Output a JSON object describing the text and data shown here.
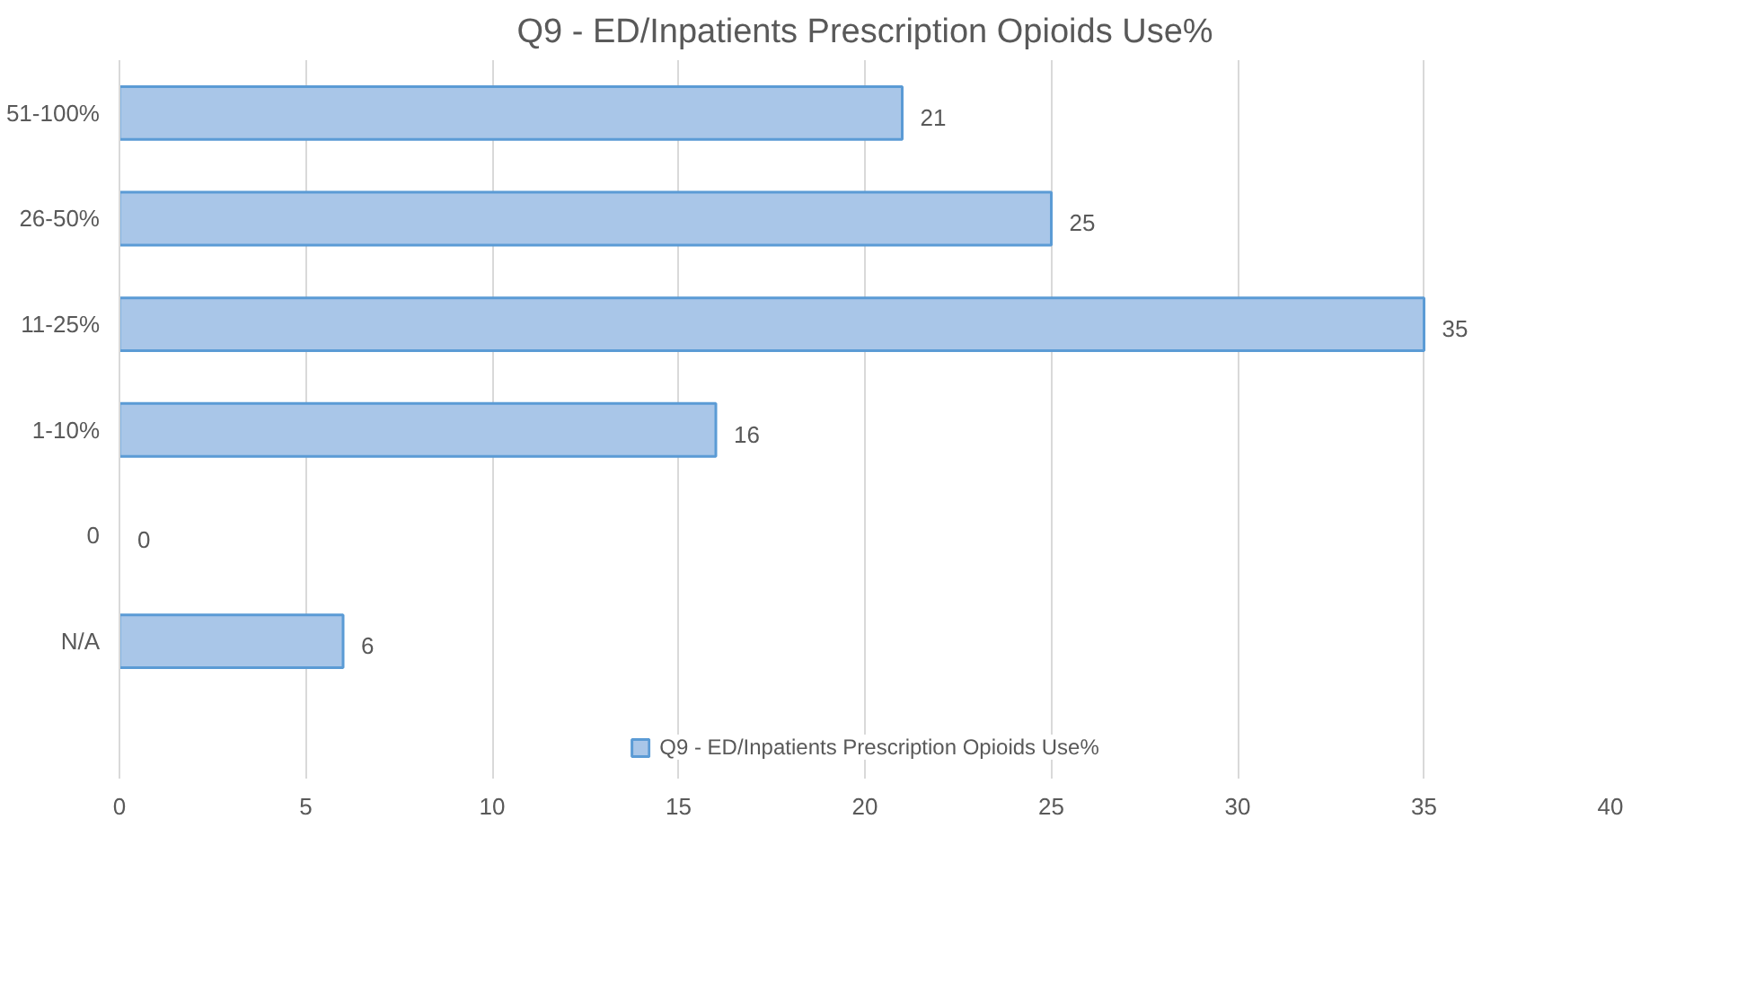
{
  "chart_data": {
    "type": "bar",
    "orientation": "horizontal",
    "title": "Q9 - ED/Inpatients Prescription Opioids Use%",
    "categories": [
      "51-100%",
      "26-50%",
      "11-25%",
      "1-10%",
      "0",
      "N/A"
    ],
    "series": [
      {
        "name": "Q9 - ED/Inpatients Prescription Opioids Use%",
        "color": "#a9c6e8",
        "values": [
          21,
          25,
          35,
          16,
          0,
          6
        ]
      }
    ],
    "xlim": [
      0,
      40
    ],
    "xticks": [
      0,
      5,
      10,
      15,
      20,
      25,
      30,
      35,
      40
    ],
    "grid": "x",
    "legend": "bottom",
    "data_labels": true
  }
}
